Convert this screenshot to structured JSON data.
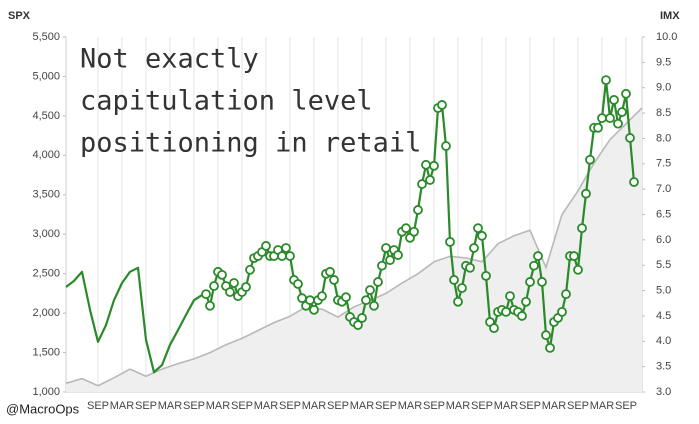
{
  "chart_data": {
    "type": "line",
    "y_axis_label": "SPX",
    "y2_axis_label": "IMX",
    "annotation": [
      "Not exactly",
      "capitulation level",
      "positioning in retail"
    ],
    "source": "@MacroOps",
    "xlim": [
      0,
      144
    ],
    "xticks": [
      {
        "value": 8,
        "label": "SEP"
      },
      {
        "value": 14,
        "label": "MAR"
      },
      {
        "value": 20,
        "label": "SEP"
      },
      {
        "value": 26,
        "label": "MAR"
      },
      {
        "value": 32,
        "label": "SEP"
      },
      {
        "value": 38,
        "label": "MAR"
      },
      {
        "value": 44,
        "label": "SEP"
      },
      {
        "value": 50,
        "label": "MAR"
      },
      {
        "value": 56,
        "label": "SEP"
      },
      {
        "value": 62,
        "label": "MAR"
      },
      {
        "value": 68,
        "label": "SEP"
      },
      {
        "value": 74,
        "label": "MAR"
      },
      {
        "value": 80,
        "label": "SEP"
      },
      {
        "value": 86,
        "label": "MAR"
      },
      {
        "value": 92,
        "label": "SEP"
      },
      {
        "value": 98,
        "label": "MAR"
      },
      {
        "value": 104,
        "label": "SEP"
      },
      {
        "value": 110,
        "label": "MAR"
      },
      {
        "value": 116,
        "label": "SEP"
      },
      {
        "value": 122,
        "label": "MAR"
      },
      {
        "value": 128,
        "label": "SEP"
      },
      {
        "value": 134,
        "label": "MAR"
      },
      {
        "value": 140,
        "label": "SEP"
      }
    ],
    "ylim": [
      1000,
      5500
    ],
    "yticks": [
      {
        "value": 1000,
        "label": "1,000"
      },
      {
        "value": 1500,
        "label": "1,500"
      },
      {
        "value": 2000,
        "label": "2,000"
      },
      {
        "value": 2500,
        "label": "2,500"
      },
      {
        "value": 3000,
        "label": "3,000"
      },
      {
        "value": 3500,
        "label": "3,500"
      },
      {
        "value": 4000,
        "label": "4,000"
      },
      {
        "value": 4500,
        "label": "4,500"
      },
      {
        "value": 5000,
        "label": "5,000"
      },
      {
        "value": 5500,
        "label": "5,500"
      }
    ],
    "y2lim": [
      3,
      10
    ],
    "y2ticks": [
      {
        "value": 3,
        "label": "3.0"
      },
      3.5,
      {
        "value": 4,
        "label": "4.0"
      },
      4.5,
      {
        "value": 5,
        "label": "5.0"
      },
      5.5,
      {
        "value": 6,
        "label": "6.0"
      },
      6.5,
      {
        "value": 7,
        "label": "7.0"
      },
      7.5,
      {
        "value": 8,
        "label": "8.0"
      },
      8.5,
      {
        "value": 9,
        "label": "9.0"
      },
      9.5,
      {
        "value": 10,
        "label": "10.0"
      }
    ],
    "grid": true,
    "series": [
      {
        "style": "area",
        "axis": "y",
        "color": "#b8b8b8",
        "x": [
          0,
          4,
          8,
          12,
          16,
          20,
          24,
          28,
          32,
          36,
          40,
          44,
          48,
          52,
          56,
          60,
          64,
          68,
          72,
          76,
          80,
          84,
          88,
          92,
          96,
          100,
          104,
          108,
          112,
          116,
          120,
          124,
          128,
          132,
          136,
          140,
          144
        ],
        "values": [
          1110,
          1170,
          1080,
          1180,
          1290,
          1200,
          1290,
          1360,
          1420,
          1500,
          1600,
          1680,
          1780,
          1880,
          1960,
          2080,
          2050,
          1950,
          2080,
          2160,
          2250,
          2380,
          2500,
          2650,
          2720,
          2700,
          2650,
          2880,
          2980,
          3050,
          2580,
          3250,
          3550,
          3900,
          4200,
          4400,
          4600
        ]
      },
      {
        "style": "line",
        "axis": "y2",
        "color": "#2a8a2a",
        "marker": false,
        "x": [
          0,
          2,
          4,
          6,
          8,
          10,
          12,
          14,
          16,
          18,
          20,
          22,
          24,
          26,
          28,
          30,
          32,
          34
        ],
        "values": [
          5.07,
          5.19,
          5.37,
          4.62,
          3.99,
          4.32,
          4.81,
          5.15,
          5.37,
          5.45,
          4.03,
          3.39,
          3.53,
          3.93,
          4.22,
          4.52,
          4.81,
          4.91
        ]
      },
      {
        "style": "line",
        "axis": "y2",
        "color": "#2a8a2a",
        "marker": true,
        "x": [
          35,
          36,
          37,
          38,
          39,
          40,
          41,
          42,
          43,
          44,
          45,
          46,
          47,
          48,
          49,
          50,
          51,
          52,
          53,
          54,
          55,
          56,
          57,
          58,
          59,
          60,
          61,
          62,
          63,
          64,
          65,
          66,
          67,
          68,
          69,
          70,
          71,
          72,
          73,
          74,
          75,
          76,
          77,
          78,
          79,
          80,
          81,
          82,
          83,
          84,
          85,
          86,
          87,
          88,
          89,
          90,
          91,
          92,
          93,
          94,
          95,
          96,
          97,
          98,
          99,
          100,
          101,
          102,
          103,
          104,
          105,
          106,
          107,
          108,
          109,
          110,
          111,
          112,
          113,
          114,
          115,
          116,
          117,
          118,
          119,
          120,
          121,
          122,
          123,
          124,
          125,
          126,
          127,
          128,
          129,
          130,
          131,
          132,
          133,
          134,
          135,
          136,
          137,
          138,
          139,
          140,
          141,
          142
        ],
        "values": [
          4.93,
          4.7,
          5.09,
          5.37,
          5.31,
          5.09,
          4.97,
          5.15,
          4.89,
          4.97,
          5.07,
          5.41,
          5.64,
          5.68,
          5.76,
          5.88,
          5.68,
          5.68,
          5.8,
          5.68,
          5.84,
          5.68,
          5.21,
          5.13,
          4.85,
          4.7,
          4.81,
          4.62,
          4.81,
          4.89,
          5.33,
          5.37,
          5.21,
          4.81,
          4.78,
          4.87,
          4.48,
          4.38,
          4.32,
          4.46,
          4.81,
          5.01,
          4.7,
          5.17,
          5.49,
          5.84,
          5.6,
          5.8,
          5.7,
          6.16,
          6.23,
          6.04,
          6.16,
          6.59,
          7.1,
          7.48,
          7.18,
          7.46,
          8.6,
          8.66,
          7.85,
          5.96,
          5.21,
          4.78,
          5.05,
          5.49,
          5.45,
          5.84,
          6.23,
          6.08,
          5.29,
          4.38,
          4.26,
          4.58,
          4.62,
          4.58,
          4.89,
          4.62,
          4.58,
          4.5,
          4.78,
          5.17,
          5.49,
          5.68,
          5.17,
          4.12,
          3.87,
          4.38,
          4.46,
          4.58,
          4.93,
          5.68,
          5.68,
          5.41,
          6.23,
          6.91,
          7.58,
          8.21,
          8.21,
          8.4,
          9.15,
          8.4,
          8.76,
          8.29,
          8.52,
          8.88,
          8.01,
          7.14
        ]
      }
    ]
  }
}
